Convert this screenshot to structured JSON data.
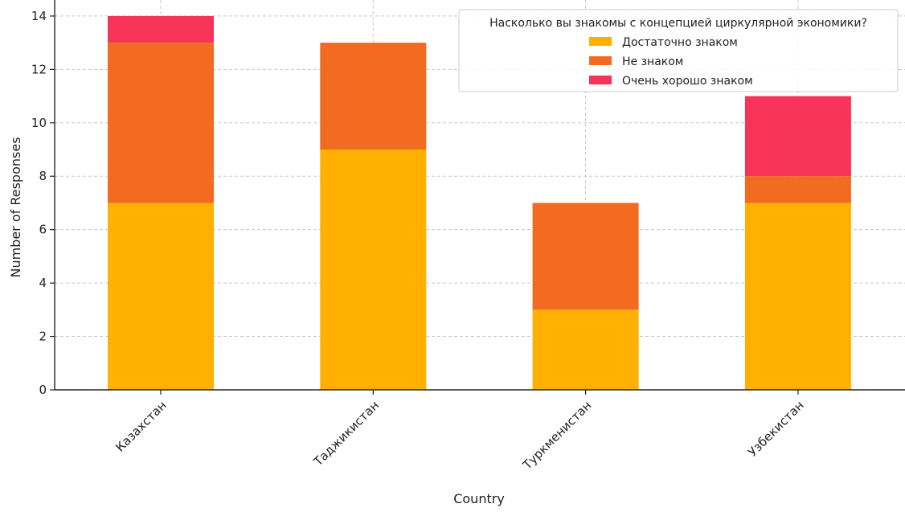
{
  "chart_data": {
    "type": "bar",
    "stacked": true,
    "title": "",
    "xlabel": "Country",
    "ylabel": "Number of Responses",
    "categories": [
      "Казахстан",
      "Таджикистан",
      "Туркменистан",
      "Узбекистан"
    ],
    "series": [
      {
        "name": "Достаточно знаком",
        "color": "#FFB000",
        "values": [
          7,
          9,
          3,
          7
        ]
      },
      {
        "name": "Не знаком",
        "color": "#F26B21",
        "values": [
          6,
          4,
          4,
          1
        ]
      },
      {
        "name": "Очень хорошо знаком",
        "color": "#F73359",
        "values": [
          1,
          0,
          0,
          3
        ]
      }
    ],
    "ylim": [
      0,
      14.6
    ],
    "yticks": [
      0,
      2,
      4,
      6,
      8,
      10,
      12,
      14
    ],
    "grid": true,
    "legend": {
      "title": "Насколько вы знакомы с концепцией циркулярной экономики?",
      "placement": "top-right"
    }
  }
}
